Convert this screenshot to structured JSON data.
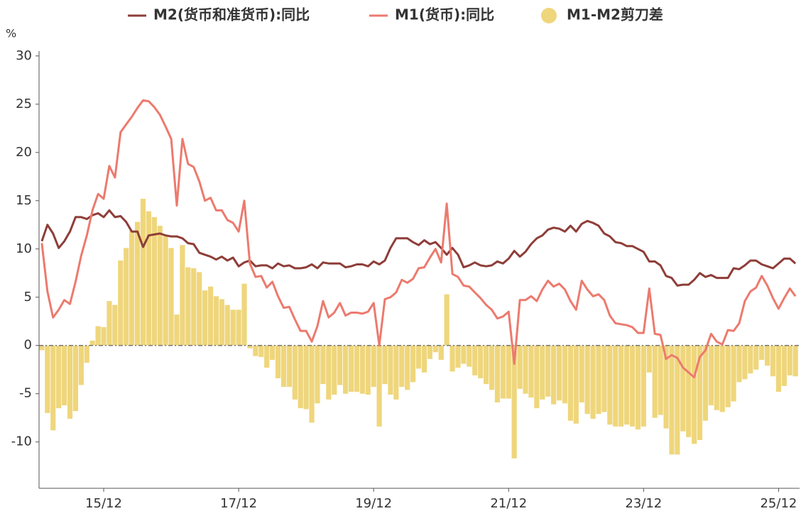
{
  "chart_data": {
    "type": "bar+line",
    "yunit": "%",
    "categories": [
      null,
      null,
      null,
      null,
      null,
      null,
      null,
      null,
      null,
      null,
      null,
      "15/12",
      null,
      null,
      null,
      null,
      null,
      null,
      null,
      null,
      null,
      null,
      null,
      null,
      null,
      null,
      null,
      null,
      null,
      null,
      null,
      null,
      null,
      null,
      null,
      "17/12",
      null,
      null,
      null,
      null,
      null,
      null,
      null,
      null,
      null,
      null,
      null,
      null,
      null,
      null,
      null,
      null,
      null,
      null,
      null,
      null,
      null,
      null,
      null,
      "19/12",
      null,
      null,
      null,
      null,
      null,
      null,
      null,
      null,
      null,
      null,
      null,
      null,
      null,
      null,
      null,
      null,
      null,
      null,
      null,
      null,
      null,
      null,
      null,
      "21/12",
      null,
      null,
      null,
      null,
      null,
      null,
      null,
      null,
      null,
      null,
      null,
      null,
      null,
      null,
      null,
      null,
      null,
      null,
      null,
      null,
      null,
      null,
      null,
      "23/12",
      null,
      null,
      null,
      null,
      null,
      null,
      null,
      null,
      null,
      null,
      null,
      null,
      null,
      null,
      null,
      null,
      null,
      null,
      null,
      null,
      null,
      null,
      null,
      "25/12",
      null,
      null,
      null
    ],
    "series": [
      {
        "name": "M2(货币和准货币):同比",
        "kind": "line",
        "color": "#8e3d38",
        "values": [
          10.8,
          12.5,
          11.6,
          10.1,
          10.8,
          11.8,
          13.3,
          13.3,
          13.1,
          13.5,
          13.7,
          13.3,
          14.0,
          13.3,
          13.4,
          12.8,
          11.8,
          11.8,
          10.2,
          11.4,
          11.5,
          11.6,
          11.4,
          11.3,
          11.3,
          11.1,
          10.6,
          10.5,
          9.6,
          9.4,
          9.2,
          8.9,
          9.2,
          8.8,
          9.1,
          8.2,
          8.6,
          8.8,
          8.2,
          8.3,
          8.3,
          8.0,
          8.5,
          8.2,
          8.3,
          8.0,
          8.0,
          8.1,
          8.4,
          8.0,
          8.6,
          8.5,
          8.5,
          8.5,
          8.1,
          8.2,
          8.4,
          8.4,
          8.2,
          8.7,
          8.4,
          8.8,
          10.1,
          11.1,
          11.1,
          11.1,
          10.7,
          10.4,
          10.9,
          10.5,
          10.7,
          10.1,
          9.4,
          10.1,
          9.4,
          8.1,
          8.3,
          8.6,
          8.3,
          8.2,
          8.3,
          8.7,
          8.5,
          9.0,
          9.8,
          9.2,
          9.7,
          10.5,
          11.1,
          11.4,
          12.0,
          12.2,
          12.1,
          11.8,
          12.4,
          11.8,
          12.6,
          12.9,
          12.7,
          12.4,
          11.6,
          11.3,
          10.7,
          10.6,
          10.3,
          10.3,
          10.0,
          9.7,
          8.7,
          8.7,
          8.3,
          7.2,
          7.0,
          6.2,
          6.3,
          6.3,
          6.8,
          7.5,
          7.1,
          7.3,
          7.0,
          7.0,
          7.0,
          8.0,
          7.9,
          8.3,
          8.8,
          8.8,
          8.4,
          8.2,
          8.0,
          8.5,
          9.0,
          9.0,
          8.5
        ]
      },
      {
        "name": "M1(货币):同比",
        "kind": "line",
        "color": "#ec7a6e",
        "values": [
          10.6,
          5.6,
          2.9,
          3.7,
          4.7,
          4.3,
          6.6,
          9.3,
          11.4,
          14.0,
          15.7,
          15.2,
          18.6,
          17.4,
          22.1,
          22.9,
          23.7,
          24.6,
          25.4,
          25.3,
          24.7,
          23.9,
          22.7,
          21.4,
          14.5,
          21.4,
          18.8,
          18.5,
          17.0,
          15.0,
          15.3,
          14.0,
          14.0,
          13.0,
          12.7,
          11.8,
          15.0,
          8.5,
          7.1,
          7.2,
          6.0,
          6.6,
          5.1,
          3.9,
          4.0,
          2.7,
          1.5,
          1.5,
          0.4,
          2.0,
          4.6,
          2.9,
          3.4,
          4.4,
          3.1,
          3.4,
          3.4,
          3.3,
          3.5,
          4.4,
          0.0,
          4.8,
          5.0,
          5.5,
          6.8,
          6.5,
          6.9,
          8.0,
          8.1,
          9.1,
          10.0,
          8.6,
          14.7,
          7.4,
          7.1,
          6.2,
          6.1,
          5.5,
          4.9,
          4.2,
          3.7,
          2.8,
          3.0,
          3.5,
          -1.9,
          4.7,
          4.7,
          5.1,
          4.6,
          5.8,
          6.7,
          6.1,
          6.4,
          5.8,
          4.6,
          3.7,
          6.7,
          5.8,
          5.1,
          5.3,
          4.7,
          3.1,
          2.3,
          2.2,
          2.1,
          1.9,
          1.3,
          1.3,
          5.9,
          1.2,
          1.1,
          -1.4,
          -1.0,
          -1.3,
          -2.3,
          -2.8,
          -3.3,
          -1.2,
          -0.5,
          1.2,
          0.4,
          0.1,
          1.6,
          1.5,
          2.3,
          4.6,
          5.6,
          6.0,
          7.2,
          6.2,
          4.9,
          3.8,
          4.9,
          5.9,
          5.1
        ]
      },
      {
        "name": "M1-M2剪刀差",
        "kind": "bar",
        "color": "#efd67c",
        "values": [
          -0.5,
          -7.0,
          -8.8,
          -6.5,
          -6.2,
          -7.6,
          -6.8,
          -4.1,
          -1.8,
          0.5,
          2.0,
          1.9,
          4.6,
          4.2,
          8.8,
          10.1,
          11.9,
          12.8,
          15.2,
          13.9,
          13.3,
          12.4,
          11.3,
          10.1,
          3.2,
          10.4,
          8.1,
          8.0,
          7.6,
          5.7,
          6.1,
          5.1,
          4.8,
          4.2,
          3.7,
          3.7,
          6.4,
          -0.3,
          -1.1,
          -1.2,
          -2.3,
          -1.5,
          -3.4,
          -4.3,
          -4.3,
          -5.6,
          -6.5,
          -6.6,
          -8.0,
          -6.0,
          -4.0,
          -5.6,
          -5.1,
          -4.1,
          -5.0,
          -4.8,
          -4.8,
          -5.0,
          -5.1,
          -4.3,
          -8.4,
          -4.0,
          -5.1,
          -5.6,
          -4.3,
          -4.6,
          -3.8,
          -2.4,
          -2.8,
          -1.4,
          -0.7,
          -1.5,
          5.3,
          -2.7,
          -2.3,
          -1.9,
          -2.2,
          -3.1,
          -3.4,
          -4.0,
          -4.6,
          -5.9,
          -5.5,
          -5.5,
          -11.7,
          -4.5,
          -5.0,
          -5.4,
          -6.5,
          -5.6,
          -5.3,
          -6.1,
          -5.7,
          -6.0,
          -7.8,
          -8.1,
          -5.9,
          -7.1,
          -7.6,
          -7.1,
          -6.9,
          -8.2,
          -8.4,
          -8.4,
          -8.2,
          -8.4,
          -8.7,
          -8.4,
          -2.8,
          -7.5,
          -7.2,
          -8.6,
          -11.3,
          -11.3,
          -8.9,
          -9.5,
          -10.2,
          -9.8,
          -7.8,
          -6.2,
          -6.7,
          -6.9,
          -6.4,
          -5.8,
          -3.8,
          -3.5,
          -2.9,
          -2.5,
          -1.5,
          -2.1,
          -3.2,
          -4.8,
          -4.2,
          -3.1,
          -3.2
        ]
      }
    ],
    "ylim": [
      -14.8,
      30.5
    ],
    "yticks": [
      -10,
      -5,
      0,
      5,
      10,
      15,
      20,
      25,
      30
    ],
    "grid": false
  }
}
